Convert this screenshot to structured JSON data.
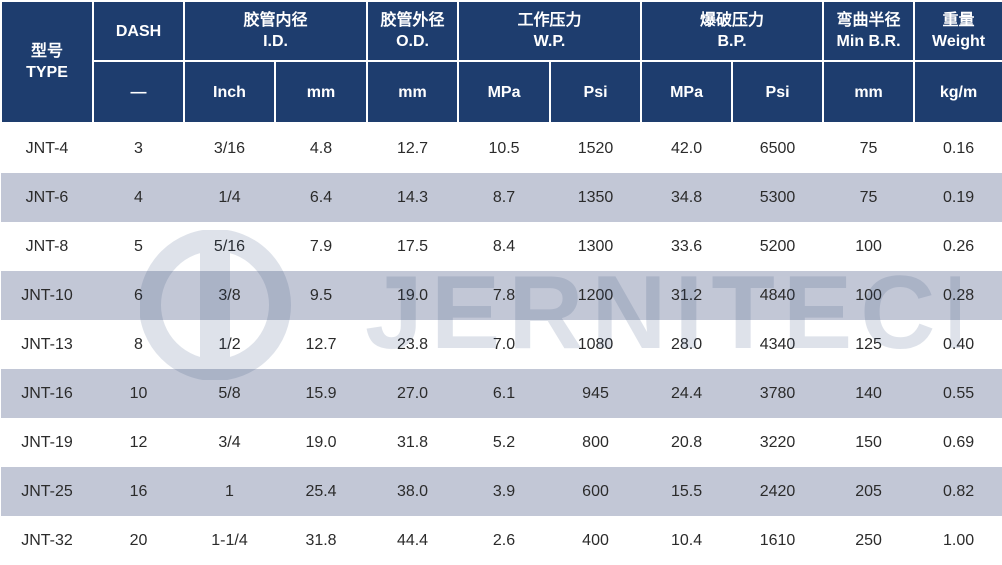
{
  "header": {
    "type": {
      "zh": "型号",
      "en": "TYPE"
    },
    "dash": "DASH",
    "dash_unit": "—",
    "id": {
      "zh": "胶管内径",
      "en": "I.D."
    },
    "od": {
      "zh": "胶管外径",
      "en": "O.D."
    },
    "wp": {
      "zh": "工作压力",
      "en": "W.P."
    },
    "bp": {
      "zh": "爆破压力",
      "en": "B.P."
    },
    "mbr": {
      "zh": "弯曲半径",
      "en": "Min B.R."
    },
    "weight": {
      "zh": "重量",
      "en": "Weight"
    },
    "units": {
      "id_inch": "Inch",
      "id_mm": "mm",
      "od_mm": "mm",
      "wp_mpa": "MPa",
      "wp_psi": "Psi",
      "bp_mpa": "MPa",
      "bp_psi": "Psi",
      "mbr_mm": "mm",
      "weight_kgm": "kg/m"
    }
  },
  "rows": [
    [
      "JNT-4",
      "3",
      "3/16",
      "4.8",
      "12.7",
      "10.5",
      "1520",
      "42.0",
      "6500",
      "75",
      "0.16"
    ],
    [
      "JNT-6",
      "4",
      "1/4",
      "6.4",
      "14.3",
      "8.7",
      "1350",
      "34.8",
      "5300",
      "75",
      "0.19"
    ],
    [
      "JNT-8",
      "5",
      "5/16",
      "7.9",
      "17.5",
      "8.4",
      "1300",
      "33.6",
      "5200",
      "100",
      "0.26"
    ],
    [
      "JNT-10",
      "6",
      "3/8",
      "9.5",
      "19.0",
      "7.8",
      "1200",
      "31.2",
      "4840",
      "100",
      "0.28"
    ],
    [
      "JNT-13",
      "8",
      "1/2",
      "12.7",
      "23.8",
      "7.0",
      "1080",
      "28.0",
      "4340",
      "125",
      "0.40"
    ],
    [
      "JNT-16",
      "10",
      "5/8",
      "15.9",
      "27.0",
      "6.1",
      "945",
      "24.4",
      "3780",
      "140",
      "0.55"
    ],
    [
      "JNT-19",
      "12",
      "3/4",
      "19.0",
      "31.8",
      "5.2",
      "800",
      "20.8",
      "3220",
      "150",
      "0.69"
    ],
    [
      "JNT-25",
      "16",
      "1",
      "25.4",
      "38.0",
      "3.9",
      "600",
      "15.5",
      "2420",
      "205",
      "0.82"
    ],
    [
      "JNT-32",
      "20",
      "1-1/4",
      "31.8",
      "44.4",
      "2.6",
      "400",
      "10.4",
      "1610",
      "250",
      "1.00"
    ]
  ],
  "watermark": {
    "text": "JERNITECH",
    "color": "#1e3d6e",
    "icon": "jernitech-logo-icon"
  },
  "colors": {
    "header_bg": "#1e3d6e",
    "stripe_bg": "#c2c7d6",
    "text": "#2b2b2b"
  }
}
